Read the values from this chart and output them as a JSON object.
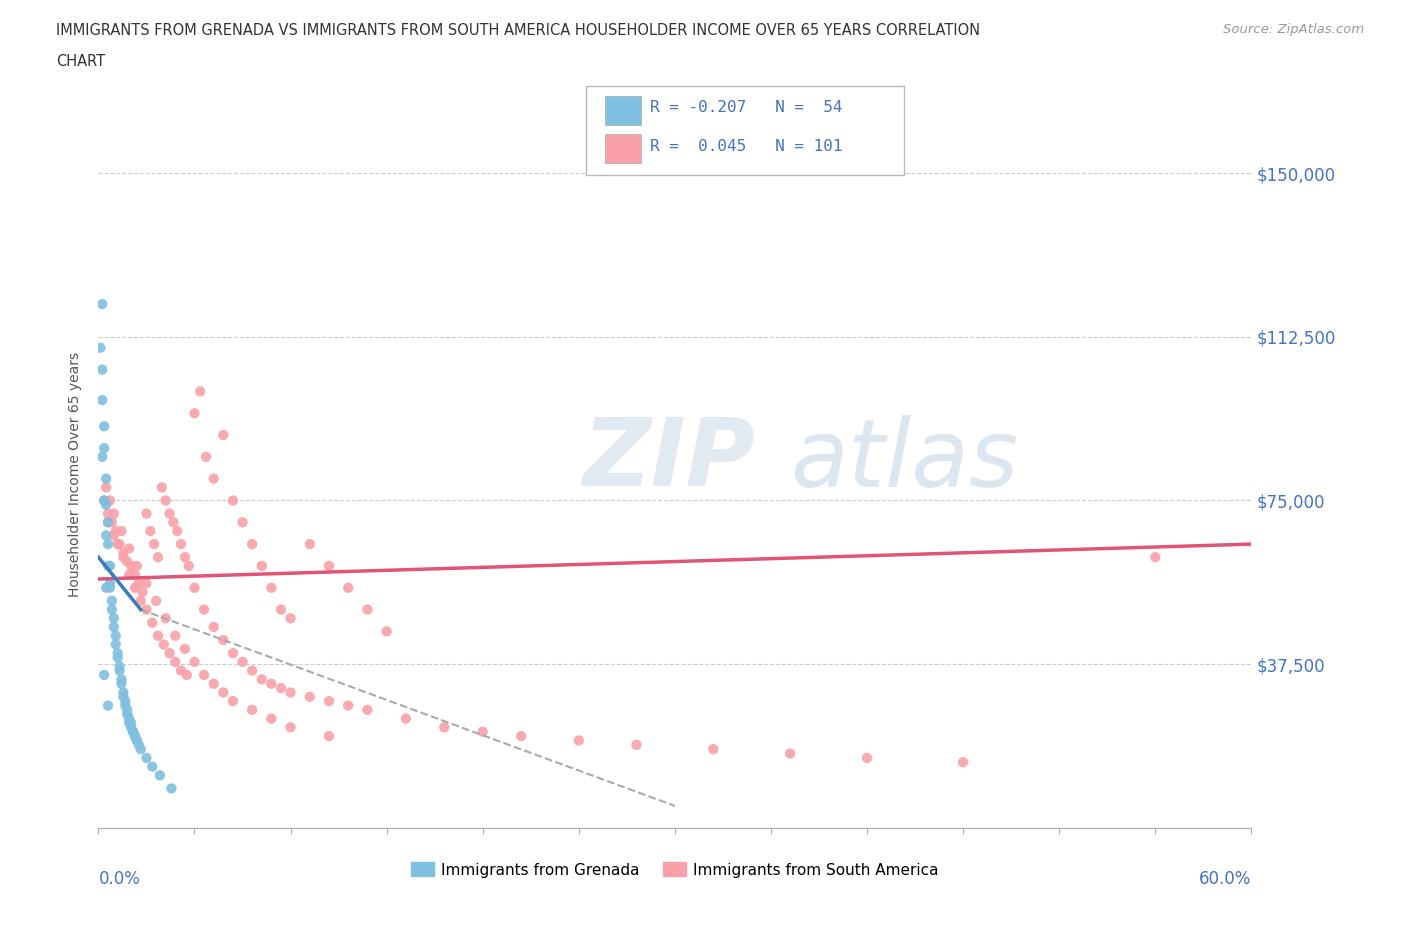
{
  "title_line1": "IMMIGRANTS FROM GRENADA VS IMMIGRANTS FROM SOUTH AMERICA HOUSEHOLDER INCOME OVER 65 YEARS CORRELATION",
  "title_line2": "CHART",
  "source": "Source: ZipAtlas.com",
  "ylabel": "Householder Income Over 65 years",
  "y_ticks": [
    0,
    37500,
    75000,
    112500,
    150000
  ],
  "y_tick_labels": [
    "",
    "$37,500",
    "$75,000",
    "$112,500",
    "$150,000"
  ],
  "xlim": [
    0.0,
    0.6
  ],
  "ylim": [
    0,
    162000
  ],
  "watermark_zip": "ZIP",
  "watermark_atlas": "atlas",
  "color_grenada": "#7fbfdf",
  "color_south_america": "#f9a0a8",
  "trend_grenada_color": "#3a7abf",
  "trend_south_america_color": "#e05575",
  "grenada_x": [
    0.001,
    0.002,
    0.002,
    0.003,
    0.003,
    0.004,
    0.004,
    0.005,
    0.005,
    0.006,
    0.006,
    0.007,
    0.008,
    0.009,
    0.01,
    0.011,
    0.012,
    0.013,
    0.014,
    0.015,
    0.016,
    0.017,
    0.018,
    0.019,
    0.02,
    0.022,
    0.025,
    0.028,
    0.032,
    0.038,
    0.002,
    0.003,
    0.004,
    0.005,
    0.006,
    0.007,
    0.008,
    0.009,
    0.01,
    0.011,
    0.012,
    0.013,
    0.014,
    0.015,
    0.016,
    0.017,
    0.018,
    0.019,
    0.02,
    0.021,
    0.002,
    0.003,
    0.004,
    0.005
  ],
  "grenada_y": [
    110000,
    105000,
    98000,
    92000,
    87000,
    80000,
    74000,
    70000,
    65000,
    60000,
    56000,
    52000,
    48000,
    44000,
    40000,
    37000,
    34000,
    31000,
    29000,
    27000,
    25000,
    24000,
    22000,
    21000,
    20000,
    18000,
    16000,
    14000,
    12000,
    9000,
    85000,
    75000,
    67000,
    60000,
    55000,
    50000,
    46000,
    42000,
    39000,
    36000,
    33000,
    30000,
    28000,
    26000,
    24000,
    23000,
    22000,
    21000,
    20000,
    19000,
    120000,
    35000,
    55000,
    28000
  ],
  "south_america_x": [
    0.003,
    0.005,
    0.007,
    0.009,
    0.011,
    0.013,
    0.015,
    0.017,
    0.019,
    0.021,
    0.023,
    0.025,
    0.027,
    0.029,
    0.031,
    0.033,
    0.035,
    0.037,
    0.039,
    0.041,
    0.043,
    0.045,
    0.047,
    0.05,
    0.053,
    0.056,
    0.06,
    0.065,
    0.07,
    0.075,
    0.08,
    0.085,
    0.09,
    0.095,
    0.1,
    0.11,
    0.12,
    0.13,
    0.14,
    0.15,
    0.005,
    0.008,
    0.01,
    0.013,
    0.016,
    0.019,
    0.022,
    0.025,
    0.028,
    0.031,
    0.034,
    0.037,
    0.04,
    0.043,
    0.046,
    0.05,
    0.055,
    0.06,
    0.065,
    0.07,
    0.075,
    0.08,
    0.085,
    0.09,
    0.095,
    0.1,
    0.11,
    0.12,
    0.13,
    0.14,
    0.16,
    0.18,
    0.2,
    0.22,
    0.25,
    0.28,
    0.32,
    0.36,
    0.4,
    0.45,
    0.004,
    0.006,
    0.008,
    0.012,
    0.016,
    0.02,
    0.025,
    0.03,
    0.035,
    0.04,
    0.045,
    0.05,
    0.055,
    0.06,
    0.065,
    0.07,
    0.08,
    0.09,
    0.1,
    0.12,
    0.55
  ],
  "south_america_y": [
    75000,
    72000,
    70000,
    68000,
    65000,
    63000,
    61000,
    60000,
    58000,
    56000,
    54000,
    72000,
    68000,
    65000,
    62000,
    78000,
    75000,
    72000,
    70000,
    68000,
    65000,
    62000,
    60000,
    95000,
    100000,
    85000,
    80000,
    90000,
    75000,
    70000,
    65000,
    60000,
    55000,
    50000,
    48000,
    65000,
    60000,
    55000,
    50000,
    45000,
    70000,
    67000,
    65000,
    62000,
    58000,
    55000,
    52000,
    50000,
    47000,
    44000,
    42000,
    40000,
    38000,
    36000,
    35000,
    55000,
    50000,
    46000,
    43000,
    40000,
    38000,
    36000,
    34000,
    33000,
    32000,
    31000,
    30000,
    29000,
    28000,
    27000,
    25000,
    23000,
    22000,
    21000,
    20000,
    19000,
    18000,
    17000,
    16000,
    15000,
    78000,
    75000,
    72000,
    68000,
    64000,
    60000,
    56000,
    52000,
    48000,
    44000,
    41000,
    38000,
    35000,
    33000,
    31000,
    29000,
    27000,
    25000,
    23000,
    21000,
    62000
  ],
  "trend_sa_x0": 0.0,
  "trend_sa_y0": 57000,
  "trend_sa_x1": 0.6,
  "trend_sa_y1": 65000,
  "trend_g_solid_x0": 0.0,
  "trend_g_solid_y0": 62000,
  "trend_g_solid_x1": 0.022,
  "trend_g_solid_y1": 50000,
  "trend_g_dash_x0": 0.022,
  "trend_g_dash_y0": 50000,
  "trend_g_dash_x1": 0.3,
  "trend_g_dash_y1": 5000
}
